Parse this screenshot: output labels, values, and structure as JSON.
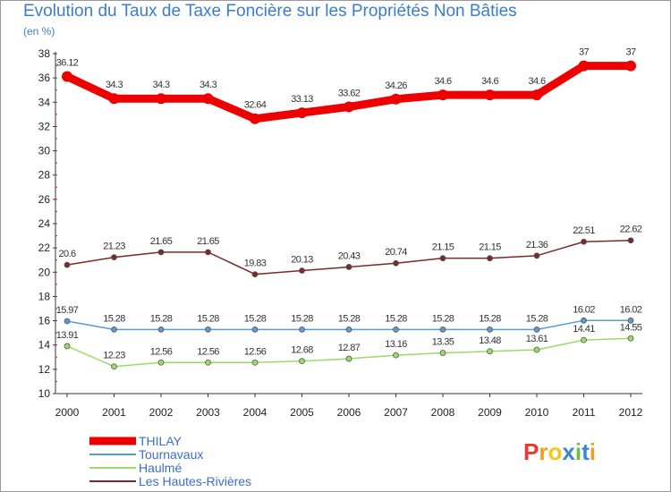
{
  "title": "Evolution du Taux de Taxe Foncière sur les Propriétés Non Bâties",
  "unit_label": "(en %)",
  "logo": {
    "text": "Proxiti",
    "letters": [
      "P",
      "r",
      "o",
      "x",
      "i",
      "t",
      "i"
    ],
    "colors": [
      "#e8382f",
      "#f39c1e",
      "#f5c518",
      "#3a86d6",
      "#6cbf3a",
      "#3a86d6",
      "#f39c1e"
    ]
  },
  "chart_data": {
    "type": "line",
    "title": "Evolution du Taux de Taxe Foncière sur les Propriétés Non Bâties",
    "ylabel": "(en %)",
    "xlabel": "",
    "x": [
      "2000",
      "2001",
      "2002",
      "2003",
      "2004",
      "2005",
      "2006",
      "2007",
      "2008",
      "2009",
      "2010",
      "2011",
      "2012"
    ],
    "ylim": [
      10,
      38
    ],
    "yticks": [
      10,
      12,
      14,
      16,
      18,
      20,
      22,
      24,
      26,
      28,
      30,
      32,
      34,
      36,
      38
    ],
    "grid": false,
    "legend_position": "bottom-left",
    "series": [
      {
        "name": "THILAY",
        "color": "#ee0000",
        "width": 9,
        "marker": 6,
        "values": [
          36.12,
          34.3,
          34.3,
          34.3,
          32.64,
          33.13,
          33.62,
          34.26,
          34.6,
          34.6,
          34.6,
          37,
          37
        ],
        "labels": [
          "36.12",
          "34.3",
          "34.3",
          "34.3",
          "32.64",
          "33.13",
          "33.62",
          "34.26",
          "34.6",
          "34.6",
          "34.6",
          "37",
          "37"
        ]
      },
      {
        "name": "Tournavaux",
        "color": "#5b9bd5",
        "width": 1.5,
        "marker": 3,
        "values": [
          15.97,
          15.28,
          15.28,
          15.28,
          15.28,
          15.28,
          15.28,
          15.28,
          15.28,
          15.28,
          15.28,
          16.02,
          16.02
        ],
        "labels": [
          "15.97",
          "15.28",
          "15.28",
          "15.28",
          "15.28",
          "15.28",
          "15.28",
          "15.28",
          "15.28",
          "15.28",
          "15.28",
          "16.02",
          "16.02"
        ]
      },
      {
        "name": "Haulmé",
        "color": "#99dd66",
        "width": 1.5,
        "marker": 3,
        "values": [
          13.91,
          12.23,
          12.56,
          12.56,
          12.56,
          12.68,
          12.87,
          13.16,
          13.35,
          13.48,
          13.61,
          14.41,
          14.55
        ],
        "labels": [
          "13.91",
          "12.23",
          "12.56",
          "12.56",
          "12.56",
          "12.68",
          "12.87",
          "13.16",
          "13.35",
          "13.48",
          "13.61",
          "14.41",
          "14.55"
        ]
      },
      {
        "name": "Les Hautes-Rivières",
        "color": "#7a2a2a",
        "width": 1.5,
        "marker": 3,
        "values": [
          20.6,
          21.23,
          21.65,
          21.65,
          19.83,
          20.13,
          20.43,
          20.74,
          21.15,
          21.15,
          21.36,
          22.51,
          22.62
        ],
        "labels": [
          "20.6",
          "21.23",
          "21.65",
          "21.65",
          "19.83",
          "20.13",
          "20.43",
          "20.74",
          "21.15",
          "21.15",
          "21.36",
          "22.51",
          "22.62"
        ]
      }
    ]
  }
}
